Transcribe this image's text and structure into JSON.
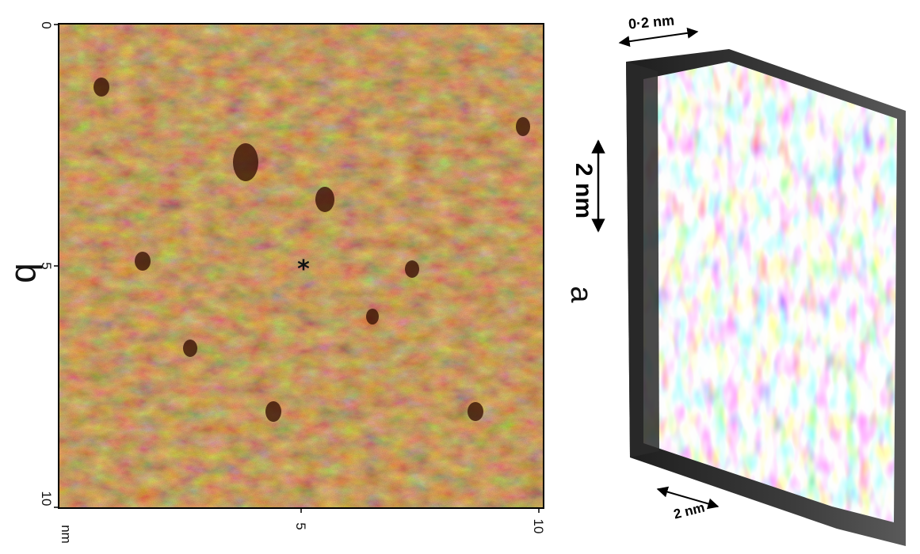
{
  "figure": {
    "panel_b": {
      "letter": "b",
      "left_axis_ticks": [
        "0",
        "5",
        "10"
      ],
      "bottom_axis_ticks": [
        "nm",
        "5",
        "10"
      ],
      "colors": {
        "light": "#f5c567",
        "mid": "#c47a33",
        "dark": "#5a2308",
        "frame": "#000000"
      },
      "marker": "*"
    },
    "panel_a": {
      "letter": "a",
      "scale_bars": {
        "height": "0·2 nm",
        "vertical": "2 nm",
        "depth": "2 nm"
      },
      "colors": {
        "surface": "#f2f2f2",
        "shadow": "#3a3a3a",
        "base": "#222222"
      }
    }
  }
}
